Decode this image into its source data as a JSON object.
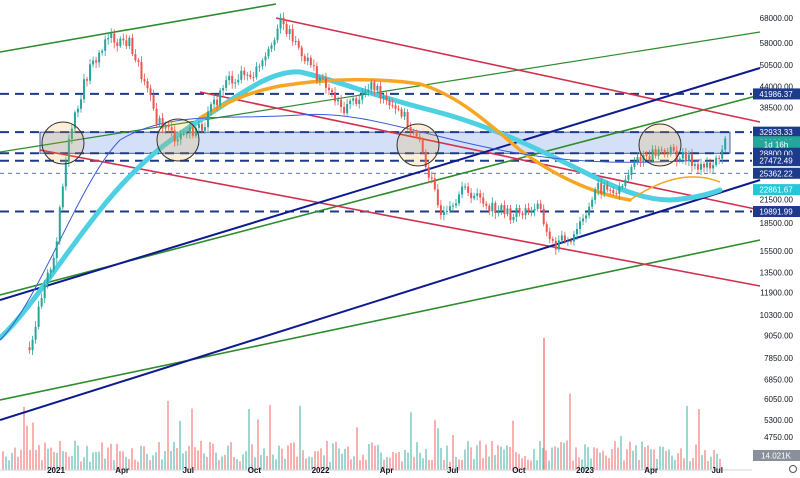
{
  "chart_data": {
    "type": "candlestick",
    "scale": "log",
    "x_ticks": [
      "2021",
      "Apr",
      "Jul",
      "Oct",
      "2022",
      "Apr",
      "Jul",
      "Oct",
      "2023",
      "Apr",
      "Jul"
    ],
    "y_ticks": [
      "68000.00",
      "58000.00",
      "50500.00",
      "44000.00",
      "38500.00",
      "28800.00",
      "25362.22",
      "21500.00",
      "18500.00",
      "15500.00",
      "13500.00",
      "11900.00",
      "10300.00",
      "9050.00",
      "7850.00",
      "6850.00",
      "6050.00",
      "5300.00",
      "4750.00"
    ],
    "price_path": [
      [
        2020.9,
        8400
      ],
      [
        2021.0,
        16000
      ],
      [
        2021.05,
        33000
      ],
      [
        2021.12,
        48000
      ],
      [
        2021.2,
        60000
      ],
      [
        2021.28,
        58000
      ],
      [
        2021.38,
        36000
      ],
      [
        2021.45,
        32000
      ],
      [
        2021.55,
        34000
      ],
      [
        2021.65,
        46000
      ],
      [
        2021.75,
        48000
      ],
      [
        2021.85,
        66000
      ],
      [
        2021.92,
        56000
      ],
      [
        2022.0,
        46000
      ],
      [
        2022.08,
        38000
      ],
      [
        2022.2,
        44000
      ],
      [
        2022.3,
        38000
      ],
      [
        2022.38,
        30000
      ],
      [
        2022.45,
        20000
      ],
      [
        2022.55,
        23000
      ],
      [
        2022.62,
        21000
      ],
      [
        2022.72,
        19500
      ],
      [
        2022.82,
        20500
      ],
      [
        2022.88,
        16000
      ],
      [
        2022.95,
        17000
      ],
      [
        2023.05,
        23000
      ],
      [
        2023.13,
        22500
      ],
      [
        2023.2,
        28000
      ],
      [
        2023.3,
        29500
      ],
      [
        2023.42,
        27000
      ],
      [
        2023.48,
        26000
      ],
      [
        2023.53,
        30982
      ]
    ],
    "horizontal_levels": [
      {
        "price": 41986.37,
        "label": "41986.37",
        "color": "#1e3a8a"
      },
      {
        "price": 32933.33,
        "label": "32933.33",
        "color": "#1e3a8a"
      },
      {
        "price": 28800.0,
        "label": "28800.00",
        "color": "#1e3a8a"
      },
      {
        "price": 27472.49,
        "label": "27472.49",
        "color": "#1e3a8a"
      },
      {
        "price": 19891.99,
        "label": "19891.99",
        "color": "#1e3a8a"
      }
    ],
    "price_labels": [
      {
        "label": "32933.33",
        "price": 32933.33,
        "color": "#1e3a8a"
      },
      {
        "label": "30982.26",
        "price": 30982.26,
        "color": "#26a69a"
      },
      {
        "label": "1d 16h",
        "price": 30400,
        "color": "#26a69a"
      },
      {
        "label": "28800.00",
        "price": 28800,
        "color": "#1e3a8a"
      },
      {
        "label": "27472.49",
        "price": 27472.49,
        "color": "#1e3a8a"
      },
      {
        "label": "25362.22",
        "price": 25362.22,
        "color": "#1e3a8a"
      },
      {
        "label": "22861.67",
        "price": 22861.67,
        "color": "#26c6da"
      },
      {
        "label": "19891.99",
        "price": 19891.99,
        "color": "#1e3a8a"
      },
      {
        "label": "41986.37",
        "price": 41986.37,
        "color": "#1e3a8a"
      }
    ],
    "volume_label": "14.021K",
    "colors": {
      "up": "#26a69a",
      "down": "#ef5350",
      "red_channel": "#d32f4f",
      "green_channel": "#2e8b2e",
      "blue_trend": "#0d1b8c",
      "ma_cyan": "#4dd0e1",
      "ma_orange": "#f5a623",
      "zone_fill": "#c5d5f5"
    }
  }
}
